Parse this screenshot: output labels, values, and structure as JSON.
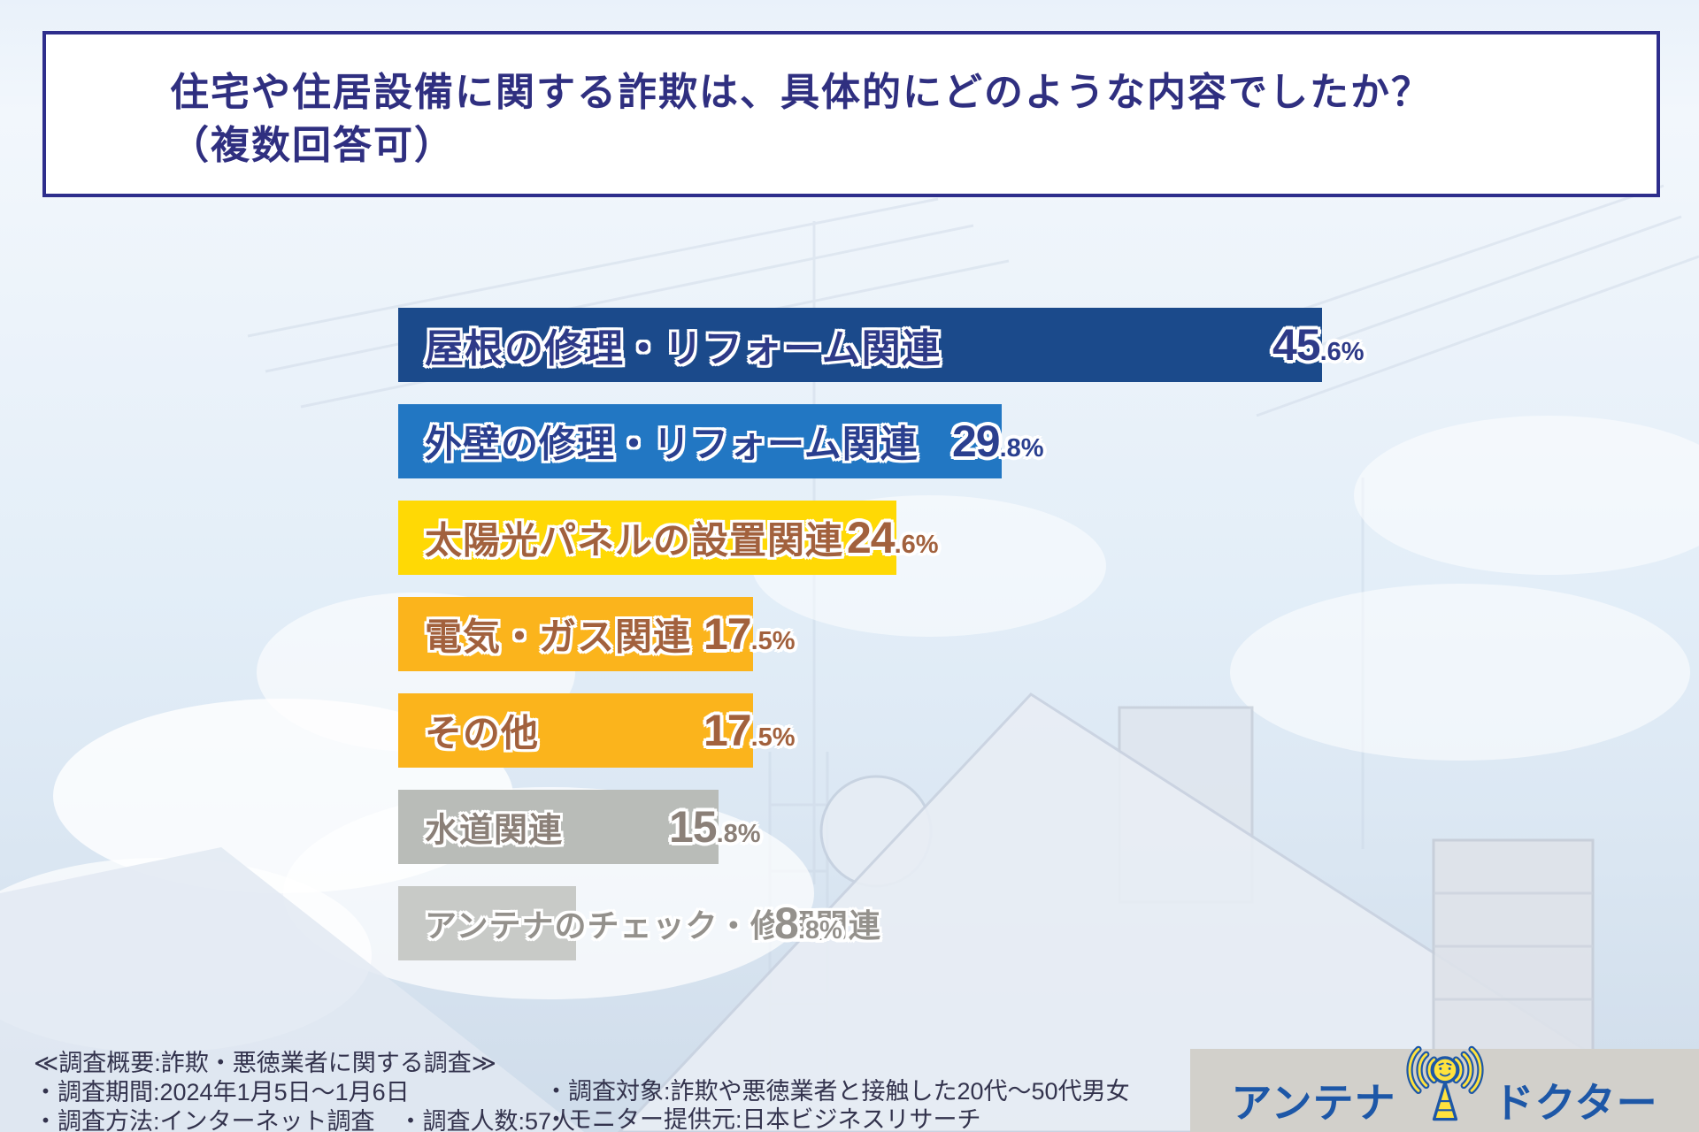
{
  "header": {
    "title_line1": "住宅や住居設備に関する詐欺は、具体的にどのような内容でしたか？",
    "title_line2": "（複数回答可）"
  },
  "chart_data": {
    "type": "bar",
    "orientation": "horizontal",
    "unit": "%",
    "xlim": [
      0,
      50
    ],
    "categories": [
      "屋根の修理・リフォーム関連",
      "外壁の修理・リフォーム関連",
      "太陽光パネルの設置関連",
      "電気・ガス関連",
      "その他",
      "水道関連",
      "アンテナのチェック・修理関連"
    ],
    "values": [
      45.6,
      29.8,
      24.6,
      17.5,
      17.5,
      15.8,
      8.8
    ],
    "bar_colors": [
      "#1b4a8b",
      "#2277c3",
      "#ffd905",
      "#fbb41c",
      "#fbb41c",
      "#b9bcb8",
      "#c8cac7"
    ],
    "text_colors": [
      "#2e3a88",
      "#2a3f8f",
      "#a2613d",
      "#a2613d",
      "#a2613d",
      "#8b8078",
      "#94918c"
    ],
    "value_labels": [
      "45.6%",
      "29.8%",
      "24.6%",
      "17.5%",
      "17.5%",
      "15.8%",
      "8.8%"
    ],
    "legend": null,
    "grid": false
  },
  "footer": {
    "survey_overview": "≪調査概要:詐欺・悪徳業者に関する調査≫",
    "survey_period": "・調査期間:2024年1月5日〜1月6日",
    "survey_method": "・調査方法:インターネット調査　・調査人数:57人",
    "survey_target": "・調査対象:詐欺や悪徳業者と接触した20代〜50代男女",
    "survey_monitor": "・モニター提供元:日本ビジネスリサーチ"
  },
  "logo": {
    "text_left": "アンテナ",
    "text_right": "ドクター",
    "icon": "antenna-mascot-icon",
    "blue": "#1d57a7",
    "yellow": "#ffe23e"
  },
  "colors": {
    "title_text": "#2f2f80",
    "title_border": "#2e2e8c",
    "footer_text": "#33334d",
    "logo_panel": "#d2d0cb"
  }
}
